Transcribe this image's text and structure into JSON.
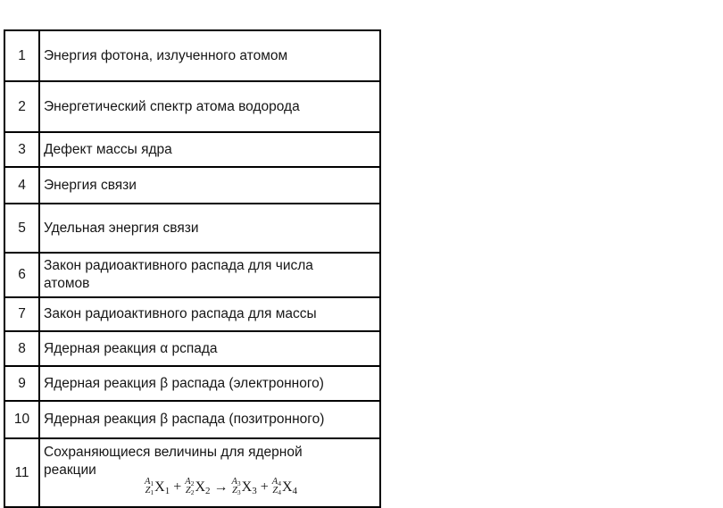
{
  "page": {
    "background": "#ffffff",
    "border_color": "#000000",
    "text_color": "#161616"
  },
  "table": {
    "rows": [
      {
        "num": "1",
        "text": "Энергия фотона, излученного атомом"
      },
      {
        "num": "2",
        "text": "Энергетический спектр атома водорода"
      },
      {
        "num": "3",
        "text": "Дефект массы ядра"
      },
      {
        "num": "4",
        "text": "Энергия связи"
      },
      {
        "num": "5",
        "text": "Удельная энергия связи"
      },
      {
        "num": "6",
        "text": "Закон радиоактивного распада для числа атомов"
      },
      {
        "num": "7",
        "text": "Закон радиоактивного распада для массы"
      },
      {
        "num": "8",
        "text": "Ядерная реакция α рспада"
      },
      {
        "num": "9",
        "text": "Ядерная реакция β распада (электронного)"
      },
      {
        "num": "10",
        "text": "Ядерная реакция β распада (позитронного)"
      },
      {
        "num": "11",
        "text": "Сохраняющиеся величины для ядерной реакции",
        "formula": {
          "terms": [
            {
              "mass": "A",
              "mass_index": "1",
              "charge": "Z",
              "charge_index": "1",
              "element": "X",
              "element_index": "1"
            },
            {
              "mass": "A",
              "mass_index": "2",
              "charge": "Z",
              "charge_index": "2",
              "element": "X",
              "element_index": "2"
            },
            {
              "mass": "A",
              "mass_index": "3",
              "charge": "Z",
              "charge_index": "3",
              "element": "X",
              "element_index": "3"
            },
            {
              "mass": "A",
              "mass_index": "4",
              "charge": "Z",
              "charge_index": "4",
              "element": "X",
              "element_index": "4"
            }
          ],
          "operators": [
            "+",
            "→",
            "+"
          ]
        }
      }
    ]
  }
}
